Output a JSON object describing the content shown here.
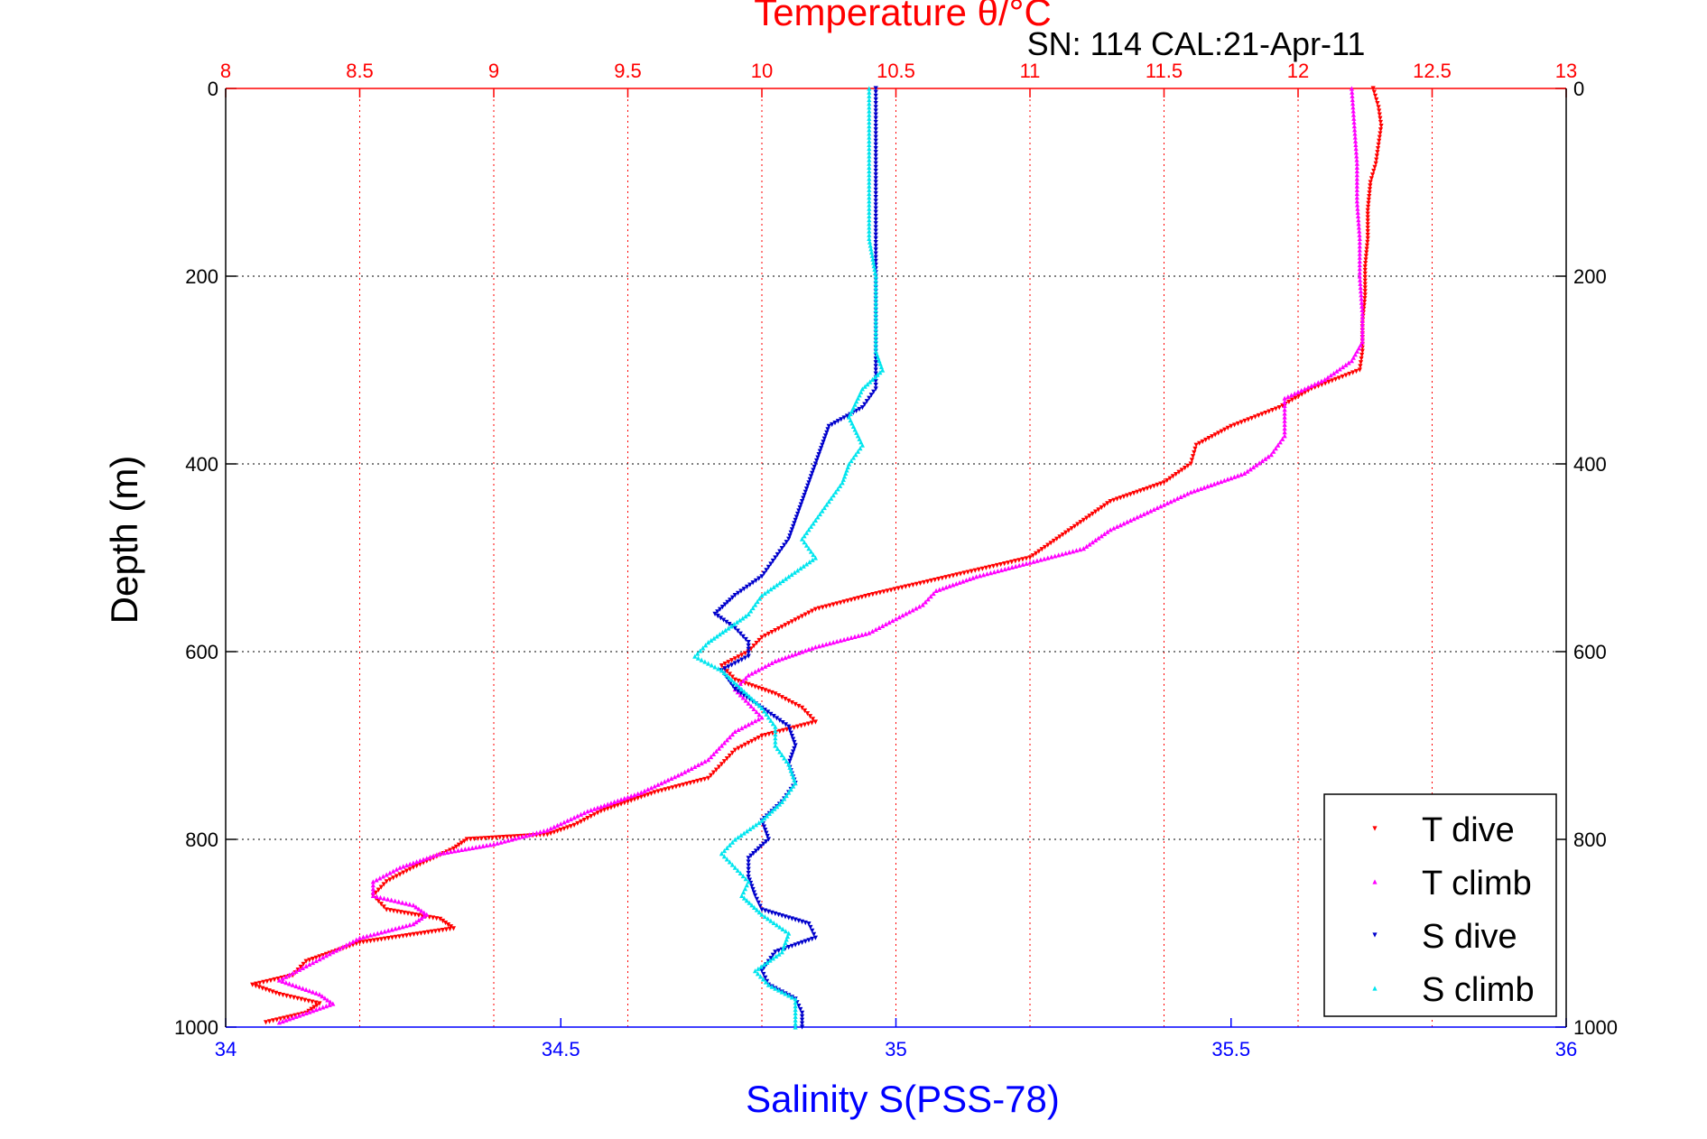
{
  "chart_data": {
    "type": "scatter",
    "title": "Temperature θ/°C",
    "subtitle": "SN: 114  CAL:21-Apr-11",
    "xlabel_bottom": "Salinity S(PSS-78)",
    "xlabel_top": "",
    "ylabel": "Depth (m)",
    "colors": {
      "temperature_axis": "#ff0000",
      "salinity_axis": "#0000ff",
      "t_dive": "#ff0000",
      "t_climb": "#ff00ff",
      "s_dive": "#0000cc",
      "s_climb": "#00e5ee",
      "grid_temp": "#ff0000",
      "grid_depth": "#000000",
      "text": "#000000"
    },
    "top_axis": {
      "range": [
        8,
        13
      ],
      "ticks": [
        8,
        8.5,
        9,
        9.5,
        10,
        10.5,
        11,
        11.5,
        12,
        12.5,
        13
      ],
      "tick_labels": [
        "8",
        "8.5",
        "9",
        "9.5",
        "10",
        "10.5",
        "11",
        "11.5",
        "12",
        "12.5",
        "13"
      ]
    },
    "bottom_axis": {
      "range": [
        34,
        36
      ],
      "ticks": [
        34,
        34.5,
        35,
        35.5,
        36
      ],
      "tick_labels": [
        "34",
        "34.5",
        "35",
        "35.5",
        "36"
      ]
    },
    "y_axis": {
      "range": [
        0,
        1000
      ],
      "reversed": true,
      "ticks": [
        0,
        200,
        400,
        600,
        800,
        1000
      ],
      "tick_labels": [
        "0",
        "200",
        "400",
        "600",
        "800",
        "1000"
      ]
    },
    "grid": true,
    "legend": {
      "position": "bottom-right",
      "entries": [
        "T dive",
        "T climb",
        "S dive",
        "S climb"
      ]
    },
    "series": [
      {
        "name": "T dive",
        "axis": "temperature",
        "marker": "triangle-down",
        "points": [
          [
            12.28,
            0
          ],
          [
            12.3,
            20
          ],
          [
            12.31,
            40
          ],
          [
            12.3,
            60
          ],
          [
            12.29,
            80
          ],
          [
            12.27,
            100
          ],
          [
            12.26,
            130
          ],
          [
            12.26,
            160
          ],
          [
            12.25,
            190
          ],
          [
            12.25,
            220
          ],
          [
            12.24,
            250
          ],
          [
            12.24,
            280
          ],
          [
            12.23,
            300
          ],
          [
            12.05,
            320
          ],
          [
            11.93,
            340
          ],
          [
            11.75,
            360
          ],
          [
            11.62,
            380
          ],
          [
            11.6,
            400
          ],
          [
            11.5,
            420
          ],
          [
            11.3,
            440
          ],
          [
            11.2,
            460
          ],
          [
            11.1,
            480
          ],
          [
            11.0,
            500
          ],
          [
            10.85,
            510
          ],
          [
            10.7,
            520
          ],
          [
            10.55,
            530
          ],
          [
            10.4,
            540
          ],
          [
            10.2,
            555
          ],
          [
            10.1,
            570
          ],
          [
            10.0,
            585
          ],
          [
            9.95,
            600
          ],
          [
            9.85,
            615
          ],
          [
            9.9,
            630
          ],
          [
            10.05,
            645
          ],
          [
            10.15,
            660
          ],
          [
            10.2,
            675
          ],
          [
            10.0,
            690
          ],
          [
            9.9,
            705
          ],
          [
            9.85,
            720
          ],
          [
            9.8,
            735
          ],
          [
            9.6,
            750
          ],
          [
            9.4,
            770
          ],
          [
            9.3,
            785
          ],
          [
            9.2,
            795
          ],
          [
            8.9,
            800
          ],
          [
            8.85,
            810
          ],
          [
            8.7,
            830
          ],
          [
            8.6,
            845
          ],
          [
            8.55,
            860
          ],
          [
            8.6,
            875
          ],
          [
            8.8,
            885
          ],
          [
            8.85,
            895
          ],
          [
            8.5,
            910
          ],
          [
            8.3,
            930
          ],
          [
            8.25,
            945
          ],
          [
            8.1,
            955
          ],
          [
            8.2,
            965
          ],
          [
            8.35,
            975
          ],
          [
            8.3,
            985
          ],
          [
            8.15,
            995
          ]
        ]
      },
      {
        "name": "T climb",
        "axis": "temperature",
        "marker": "triangle-up",
        "points": [
          [
            12.2,
            0
          ],
          [
            12.21,
            40
          ],
          [
            12.22,
            80
          ],
          [
            12.22,
            120
          ],
          [
            12.23,
            160
          ],
          [
            12.23,
            200
          ],
          [
            12.24,
            240
          ],
          [
            12.24,
            270
          ],
          [
            12.2,
            290
          ],
          [
            12.1,
            310
          ],
          [
            11.95,
            330
          ],
          [
            11.95,
            350
          ],
          [
            11.95,
            370
          ],
          [
            11.9,
            390
          ],
          [
            11.8,
            410
          ],
          [
            11.6,
            430
          ],
          [
            11.45,
            450
          ],
          [
            11.3,
            470
          ],
          [
            11.2,
            490
          ],
          [
            11.0,
            505
          ],
          [
            10.8,
            520
          ],
          [
            10.65,
            535
          ],
          [
            10.6,
            550
          ],
          [
            10.5,
            565
          ],
          [
            10.4,
            580
          ],
          [
            10.2,
            595
          ],
          [
            10.05,
            610
          ],
          [
            9.95,
            625
          ],
          [
            9.9,
            640
          ],
          [
            9.95,
            655
          ],
          [
            10.0,
            670
          ],
          [
            9.9,
            685
          ],
          [
            9.85,
            700
          ],
          [
            9.8,
            715
          ],
          [
            9.7,
            730
          ],
          [
            9.55,
            750
          ],
          [
            9.35,
            770
          ],
          [
            9.2,
            790
          ],
          [
            9.0,
            805
          ],
          [
            8.8,
            815
          ],
          [
            8.65,
            830
          ],
          [
            8.55,
            845
          ],
          [
            8.55,
            860
          ],
          [
            8.7,
            870
          ],
          [
            8.75,
            880
          ],
          [
            8.7,
            890
          ],
          [
            8.5,
            905
          ],
          [
            8.4,
            920
          ],
          [
            8.3,
            935
          ],
          [
            8.2,
            950
          ],
          [
            8.35,
            965
          ],
          [
            8.4,
            975
          ],
          [
            8.3,
            985
          ],
          [
            8.2,
            995
          ]
        ]
      },
      {
        "name": "S dive",
        "axis": "salinity",
        "marker": "triangle-down",
        "points": [
          [
            34.97,
            0
          ],
          [
            34.97,
            40
          ],
          [
            34.97,
            80
          ],
          [
            34.97,
            120
          ],
          [
            34.97,
            160
          ],
          [
            34.97,
            200
          ],
          [
            34.97,
            240
          ],
          [
            34.97,
            280
          ],
          [
            34.97,
            320
          ],
          [
            34.95,
            340
          ],
          [
            34.9,
            360
          ],
          [
            34.89,
            380
          ],
          [
            34.88,
            400
          ],
          [
            34.87,
            420
          ],
          [
            34.86,
            440
          ],
          [
            34.85,
            460
          ],
          [
            34.84,
            480
          ],
          [
            34.82,
            500
          ],
          [
            34.8,
            520
          ],
          [
            34.76,
            540
          ],
          [
            34.73,
            560
          ],
          [
            34.76,
            575
          ],
          [
            34.78,
            590
          ],
          [
            34.78,
            605
          ],
          [
            34.74,
            620
          ],
          [
            34.76,
            640
          ],
          [
            34.8,
            660
          ],
          [
            34.84,
            680
          ],
          [
            34.85,
            700
          ],
          [
            34.84,
            720
          ],
          [
            34.85,
            740
          ],
          [
            34.83,
            760
          ],
          [
            34.8,
            780
          ],
          [
            34.81,
            800
          ],
          [
            34.78,
            820
          ],
          [
            34.78,
            840
          ],
          [
            34.79,
            860
          ],
          [
            34.8,
            875
          ],
          [
            34.87,
            890
          ],
          [
            34.88,
            905
          ],
          [
            34.82,
            920
          ],
          [
            34.8,
            940
          ],
          [
            34.81,
            955
          ],
          [
            34.85,
            970
          ],
          [
            34.86,
            985
          ],
          [
            34.86,
            1000
          ]
        ]
      },
      {
        "name": "S climb",
        "axis": "salinity",
        "marker": "triangle-up",
        "points": [
          [
            34.96,
            0
          ],
          [
            34.96,
            40
          ],
          [
            34.96,
            80
          ],
          [
            34.96,
            120
          ],
          [
            34.96,
            160
          ],
          [
            34.97,
            200
          ],
          [
            34.97,
            240
          ],
          [
            34.97,
            280
          ],
          [
            34.98,
            300
          ],
          [
            34.95,
            320
          ],
          [
            34.93,
            350
          ],
          [
            34.95,
            380
          ],
          [
            34.93,
            400
          ],
          [
            34.92,
            420
          ],
          [
            34.9,
            440
          ],
          [
            34.88,
            460
          ],
          [
            34.86,
            480
          ],
          [
            34.88,
            500
          ],
          [
            34.84,
            520
          ],
          [
            34.8,
            540
          ],
          [
            34.78,
            560
          ],
          [
            34.75,
            575
          ],
          [
            34.72,
            590
          ],
          [
            34.7,
            605
          ],
          [
            34.74,
            620
          ],
          [
            34.77,
            640
          ],
          [
            34.8,
            660
          ],
          [
            34.82,
            680
          ],
          [
            34.82,
            700
          ],
          [
            34.84,
            720
          ],
          [
            34.85,
            740
          ],
          [
            34.83,
            760
          ],
          [
            34.8,
            780
          ],
          [
            34.76,
            800
          ],
          [
            34.74,
            815
          ],
          [
            34.76,
            830
          ],
          [
            34.78,
            845
          ],
          [
            34.77,
            860
          ],
          [
            34.8,
            880
          ],
          [
            34.84,
            900
          ],
          [
            34.83,
            920
          ],
          [
            34.79,
            940
          ],
          [
            34.81,
            955
          ],
          [
            34.85,
            970
          ],
          [
            34.85,
            985
          ],
          [
            34.85,
            1000
          ]
        ]
      }
    ]
  }
}
